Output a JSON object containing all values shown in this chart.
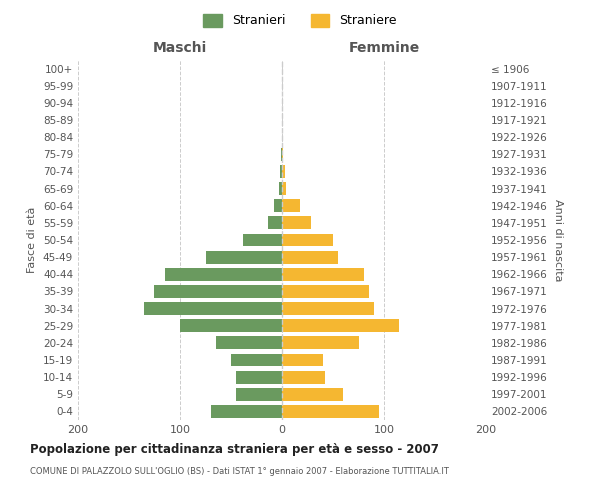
{
  "age_groups": [
    "100+",
    "95-99",
    "90-94",
    "85-89",
    "80-84",
    "75-79",
    "70-74",
    "65-69",
    "60-64",
    "55-59",
    "50-54",
    "45-49",
    "40-44",
    "35-39",
    "30-34",
    "25-29",
    "20-24",
    "15-19",
    "10-14",
    "5-9",
    "0-4"
  ],
  "birth_years": [
    "≤ 1906",
    "1907-1911",
    "1912-1916",
    "1917-1921",
    "1922-1926",
    "1927-1931",
    "1932-1936",
    "1937-1941",
    "1942-1946",
    "1947-1951",
    "1952-1956",
    "1957-1961",
    "1962-1966",
    "1967-1971",
    "1972-1976",
    "1977-1981",
    "1982-1986",
    "1987-1991",
    "1992-1996",
    "1997-2001",
    "2002-2006"
  ],
  "maschi": [
    0,
    0,
    0,
    0,
    0,
    1,
    2,
    3,
    8,
    14,
    38,
    75,
    115,
    125,
    135,
    100,
    65,
    50,
    45,
    45,
    70
  ],
  "femmine": [
    0,
    0,
    0,
    0,
    0,
    1,
    3,
    4,
    18,
    28,
    50,
    55,
    80,
    85,
    90,
    115,
    75,
    40,
    42,
    60,
    95
  ],
  "color_maschi": "#6a9a5f",
  "color_femmine": "#f5b731",
  "title": "Popolazione per cittadinanza straniera per età e sesso - 2007",
  "subtitle": "COMUNE DI PALAZZOLO SULL'OGLIO (BS) - Dati ISTAT 1° gennaio 2007 - Elaborazione TUTTITALIA.IT",
  "xlabel_left": "Maschi",
  "xlabel_right": "Femmine",
  "ylabel_left": "Fasce di età",
  "ylabel_right": "Anni di nascita",
  "legend_maschi": "Stranieri",
  "legend_femmine": "Straniere",
  "xlim": 200,
  "bg_color": "#ffffff",
  "grid_color": "#cccccc"
}
